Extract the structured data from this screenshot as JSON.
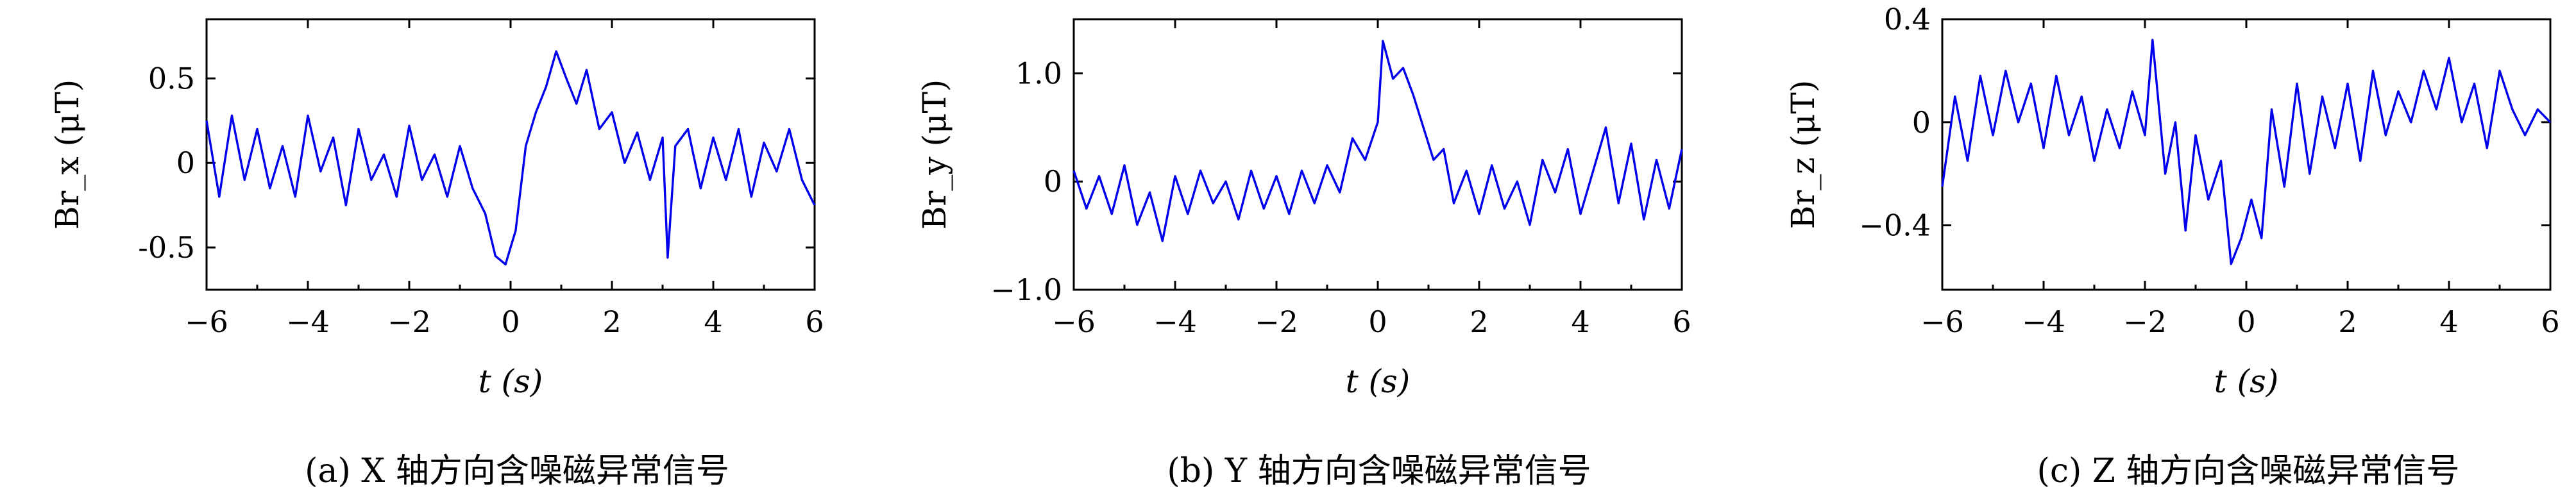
{
  "figure": {
    "xlabel": "t (s)",
    "panels": [
      {
        "ylabel": "Br_x (μT)",
        "caption": "(a) X 轴方向含噪磁异常信号"
      },
      {
        "ylabel": "Br_y (μT)",
        "caption": "(b) Y 轴方向含噪磁异常信号"
      },
      {
        "ylabel": "Br_z (μT)",
        "caption": "(c) Z 轴方向含噪磁异常信号"
      }
    ]
  },
  "chart_data": [
    {
      "type": "line",
      "title": "",
      "caption": "(a) X 轴方向含噪磁异常信号",
      "xlabel": "t (s)",
      "ylabel": "Br_x (μT)",
      "xlim": [
        -6,
        6
      ],
      "ylim": [
        -0.75,
        0.85
      ],
      "xticks": [
        -6,
        -4,
        -2,
        0,
        2,
        4,
        6
      ],
      "xtick_labels": [
        "−6",
        "−4",
        "−2",
        "0",
        "2",
        "4",
        "6"
      ],
      "yticks": [
        -0.5,
        0,
        0.5
      ],
      "ytick_labels": [
        "-0.5",
        "0",
        "0.5"
      ],
      "grid": false,
      "series": [
        {
          "color": "#0000ee",
          "x": [
            -6.0,
            -5.75,
            -5.5,
            -5.25,
            -5.0,
            -4.75,
            -4.5,
            -4.25,
            -4.0,
            -3.75,
            -3.5,
            -3.25,
            -3.0,
            -2.75,
            -2.5,
            -2.25,
            -2.0,
            -1.75,
            -1.5,
            -1.25,
            -1.0,
            -0.75,
            -0.5,
            -0.3,
            -0.1,
            0.1,
            0.3,
            0.5,
            0.7,
            0.9,
            1.1,
            1.3,
            1.5,
            1.75,
            2.0,
            2.25,
            2.5,
            2.75,
            3.0,
            3.1,
            3.25,
            3.5,
            3.75,
            4.0,
            4.25,
            4.5,
            4.75,
            5.0,
            5.25,
            5.5,
            5.75,
            6.0
          ],
          "y": [
            0.25,
            -0.2,
            0.28,
            -0.1,
            0.2,
            -0.15,
            0.1,
            -0.2,
            0.28,
            -0.05,
            0.15,
            -0.25,
            0.2,
            -0.1,
            0.05,
            -0.2,
            0.22,
            -0.1,
            0.05,
            -0.2,
            0.1,
            -0.15,
            -0.3,
            -0.55,
            -0.6,
            -0.4,
            0.1,
            0.3,
            0.45,
            0.66,
            0.5,
            0.35,
            0.55,
            0.2,
            0.3,
            0.0,
            0.18,
            -0.1,
            0.15,
            -0.56,
            0.1,
            0.2,
            -0.15,
            0.15,
            -0.1,
            0.2,
            -0.2,
            0.12,
            -0.05,
            0.2,
            -0.1,
            -0.25
          ]
        }
      ]
    },
    {
      "type": "line",
      "title": "",
      "caption": "(b) Y 轴方向含噪磁异常信号",
      "xlabel": "t (s)",
      "ylabel": "Br_y (μT)",
      "xlim": [
        -6,
        6
      ],
      "ylim": [
        -1.0,
        1.5
      ],
      "xticks": [
        -6,
        -4,
        -2,
        0,
        2,
        4,
        6
      ],
      "xtick_labels": [
        "−6",
        "−4",
        "−2",
        "0",
        "2",
        "4",
        "6"
      ],
      "yticks": [
        -1.0,
        0,
        1.0
      ],
      "ytick_labels": [
        "−1.0",
        "0",
        "1.0"
      ],
      "grid": false,
      "series": [
        {
          "color": "#0000ee",
          "x": [
            -6.0,
            -5.75,
            -5.5,
            -5.25,
            -5.0,
            -4.75,
            -4.5,
            -4.25,
            -4.0,
            -3.75,
            -3.5,
            -3.25,
            -3.0,
            -2.75,
            -2.5,
            -2.25,
            -2.0,
            -1.75,
            -1.5,
            -1.25,
            -1.0,
            -0.75,
            -0.5,
            -0.25,
            0.0,
            0.1,
            0.3,
            0.5,
            0.7,
            0.9,
            1.1,
            1.3,
            1.5,
            1.75,
            2.0,
            2.25,
            2.5,
            2.75,
            3.0,
            3.25,
            3.5,
            3.75,
            4.0,
            4.25,
            4.5,
            4.75,
            5.0,
            5.25,
            5.5,
            5.75,
            6.0
          ],
          "y": [
            0.1,
            -0.25,
            0.05,
            -0.3,
            0.15,
            -0.4,
            -0.1,
            -0.55,
            0.05,
            -0.3,
            0.1,
            -0.2,
            0.0,
            -0.35,
            0.1,
            -0.25,
            0.05,
            -0.3,
            0.1,
            -0.2,
            0.15,
            -0.1,
            0.4,
            0.2,
            0.55,
            1.3,
            0.95,
            1.05,
            0.8,
            0.5,
            0.2,
            0.3,
            -0.2,
            0.1,
            -0.3,
            0.15,
            -0.25,
            0.0,
            -0.4,
            0.2,
            -0.1,
            0.3,
            -0.3,
            0.1,
            0.5,
            -0.2,
            0.35,
            -0.35,
            0.2,
            -0.25,
            0.3
          ]
        }
      ]
    },
    {
      "type": "line",
      "title": "",
      "caption": "(c) Z 轴方向含噪磁异常信号",
      "xlabel": "t (s)",
      "ylabel": "Br_z (μT)",
      "xlim": [
        -6,
        6
      ],
      "ylim": [
        -0.65,
        0.4
      ],
      "xticks": [
        -6,
        -4,
        -2,
        0,
        2,
        4,
        6
      ],
      "xtick_labels": [
        "−6",
        "−4",
        "−2",
        "0",
        "2",
        "4",
        "6"
      ],
      "yticks": [
        -0.4,
        0,
        0.4
      ],
      "ytick_labels": [
        "−0.4",
        "0",
        "0.4"
      ],
      "grid": false,
      "series": [
        {
          "color": "#0000ee",
          "x": [
            -6.0,
            -5.75,
            -5.5,
            -5.25,
            -5.0,
            -4.75,
            -4.5,
            -4.25,
            -4.0,
            -3.75,
            -3.5,
            -3.25,
            -3.0,
            -2.75,
            -2.5,
            -2.25,
            -2.0,
            -1.85,
            -1.6,
            -1.4,
            -1.2,
            -1.0,
            -0.75,
            -0.5,
            -0.3,
            -0.1,
            0.1,
            0.3,
            0.5,
            0.75,
            1.0,
            1.25,
            1.5,
            1.75,
            2.0,
            2.25,
            2.5,
            2.75,
            3.0,
            3.25,
            3.5,
            3.75,
            4.0,
            4.25,
            4.5,
            4.75,
            5.0,
            5.25,
            5.5,
            5.75,
            6.0
          ],
          "y": [
            -0.25,
            0.1,
            -0.15,
            0.18,
            -0.05,
            0.2,
            0.0,
            0.15,
            -0.1,
            0.18,
            -0.05,
            0.1,
            -0.15,
            0.05,
            -0.1,
            0.12,
            -0.05,
            0.32,
            -0.2,
            0.0,
            -0.42,
            -0.05,
            -0.3,
            -0.15,
            -0.55,
            -0.45,
            -0.3,
            -0.45,
            0.05,
            -0.25,
            0.15,
            -0.2,
            0.1,
            -0.1,
            0.15,
            -0.15,
            0.2,
            -0.05,
            0.12,
            0.0,
            0.2,
            0.05,
            0.25,
            0.0,
            0.15,
            -0.1,
            0.2,
            0.05,
            -0.05,
            0.05,
            0.0
          ]
        }
      ]
    }
  ]
}
